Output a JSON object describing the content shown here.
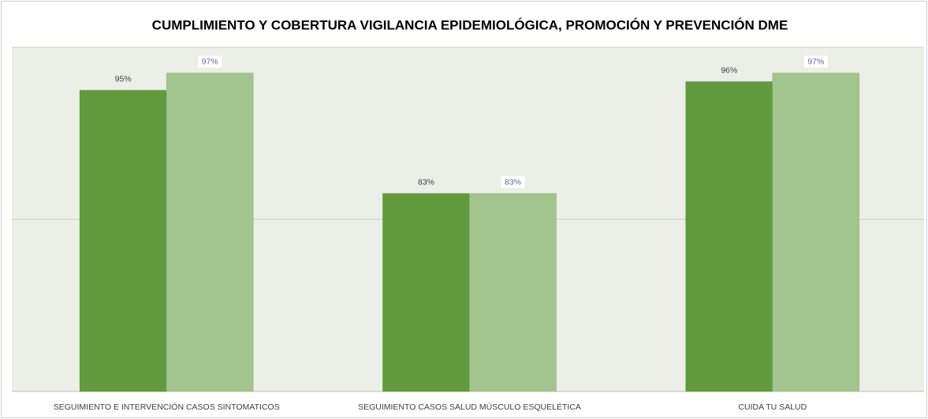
{
  "chart_data": {
    "type": "bar",
    "title": "CUMPLIMIENTO Y COBERTURA  VIGILANCIA EPIDEMIOLÓGICA, PROMOCIÓN Y PREVENCIÓN DME",
    "categories": [
      "SEGUIMIENTO E INTERVENCIÓN CASOS SINTOMATICOS",
      "SEGUIMIENTO CASOS SALUD MÚSCULO ESQUELÉTICA",
      "CUIDA TU SALUD"
    ],
    "series": [
      {
        "color": "#629a3e",
        "values": [
          95,
          83,
          96
        ],
        "value_labels": [
          "95%",
          "83%",
          "96%"
        ]
      },
      {
        "color": "#a2c48f",
        "values": [
          97,
          83,
          97
        ],
        "value_labels": [
          "97%",
          "83%",
          "97%"
        ]
      }
    ],
    "ylim": [
      60,
      100
    ],
    "yticks": [
      60,
      80,
      100
    ],
    "grid": true
  }
}
